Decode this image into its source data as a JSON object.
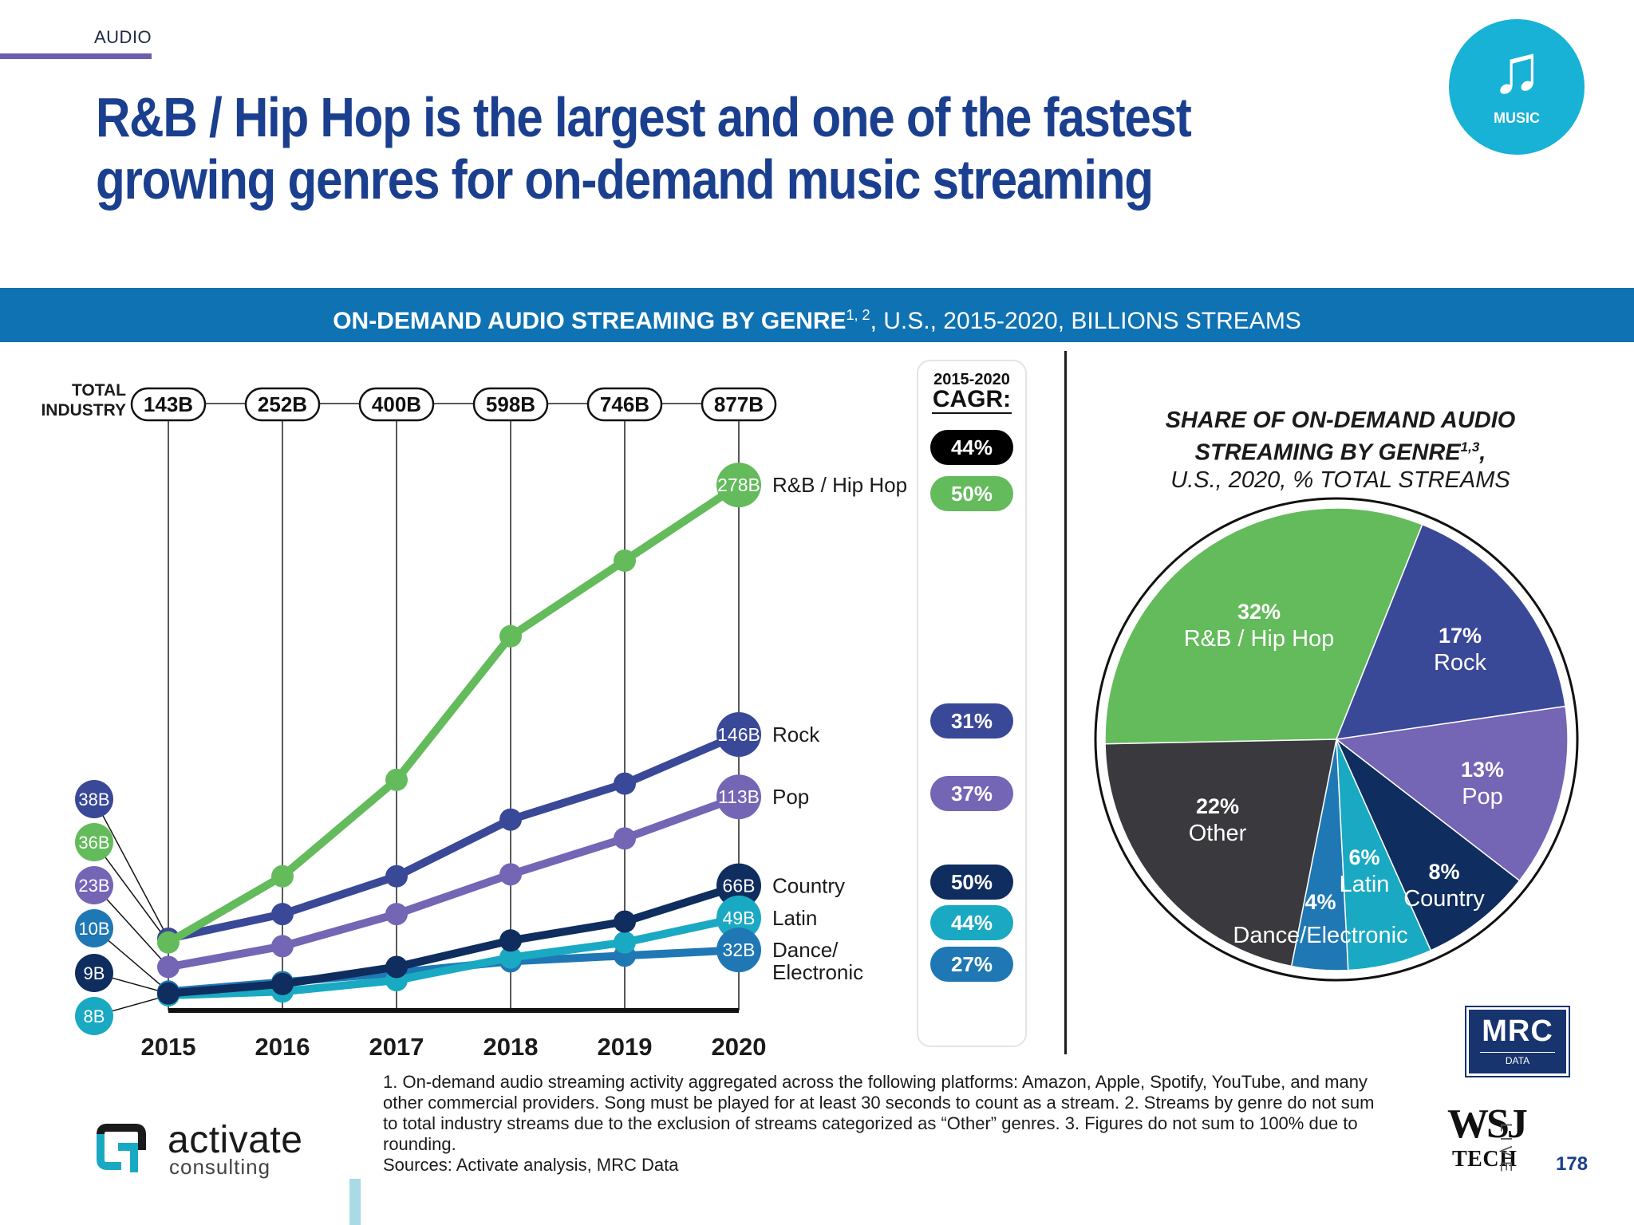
{
  "header": {
    "section": "AUDIO",
    "headline": "R&B / Hip Hop is the largest and one of the fastest growing genres for on-demand music streaming",
    "badge_label": "MUSIC"
  },
  "banner": {
    "bold_text": "ON-DEMAND AUDIO STREAMING BY GENRE",
    "superscript": "1, 2",
    "rest_text": ", U.S., 2015-2020, BILLIONS STREAMS"
  },
  "colors": {
    "rnb": "#63bb5b",
    "rock": "#3a4898",
    "pop": "#7465b5",
    "country": "#0f2d5e",
    "latin": "#1aa9c2",
    "dance": "#1f78b4",
    "other": "#3a3a3e",
    "navy": "#1b3f8f",
    "banner": "#0f72b3"
  },
  "chart_data": [
    {
      "type": "line",
      "x": [
        "2015",
        "2016",
        "2017",
        "2018",
        "2019",
        "2020"
      ],
      "total_label": "TOTAL INDUSTRY",
      "totals": [
        "143B",
        "252B",
        "400B",
        "598B",
        "746B",
        "877B"
      ],
      "cagr_title_top": "2015-2020",
      "cagr_title": "CAGR:",
      "total_cagr": "44%",
      "ylim": [
        0,
        285
      ],
      "series": [
        {
          "key": "rnb",
          "name": "R&B / Hip Hop",
          "values": [
            36,
            71,
            122,
            198,
            238,
            278
          ],
          "start_label": "36B",
          "end_label": "278B",
          "cagr": "50%"
        },
        {
          "key": "rock",
          "name": "Rock",
          "values": [
            38,
            51,
            71,
            101,
            120,
            146
          ],
          "start_label": "38B",
          "end_label": "146B",
          "cagr": "31%"
        },
        {
          "key": "pop",
          "name": "Pop",
          "values": [
            23,
            34,
            51,
            72,
            91,
            113
          ],
          "start_label": "23B",
          "end_label": "113B",
          "cagr": "37%"
        },
        {
          "key": "country",
          "name": "Country",
          "values": [
            9,
            14,
            23,
            37,
            47,
            66
          ],
          "start_label": "9B",
          "end_label": "66B",
          "cagr": "50%"
        },
        {
          "key": "latin",
          "name": "Latin",
          "values": [
            8,
            10,
            16,
            28,
            36,
            49
          ],
          "start_label": "8B",
          "end_label": "49B",
          "cagr": "44%"
        },
        {
          "key": "dance",
          "name": "Dance/ Electronic",
          "name_lines": [
            "Dance/",
            "Electronic"
          ],
          "values": [
            10,
            15,
            20,
            26,
            29,
            32
          ],
          "start_label": "10B",
          "end_label": "32B",
          "cagr": "27%"
        }
      ]
    },
    {
      "type": "pie",
      "title_line1": "SHARE OF ON-DEMAND AUDIO",
      "title_line2": "STREAMING BY GENRE",
      "title_sup": "1,3",
      "title_line2_end": ",",
      "title_line3": "U.S., 2020, % TOTAL STREAMS",
      "slices": [
        {
          "key": "rnb",
          "label": "R&B / Hip Hop",
          "pct_label": "32%",
          "value": 32
        },
        {
          "key": "rock",
          "label": "Rock",
          "pct_label": "17%",
          "value": 17
        },
        {
          "key": "pop",
          "label": "Pop",
          "pct_label": "13%",
          "value": 13
        },
        {
          "key": "country",
          "label": "Country",
          "pct_label": "8%",
          "value": 8
        },
        {
          "key": "latin",
          "label": "Latin",
          "pct_label": "6%",
          "value": 6
        },
        {
          "key": "dance",
          "label": "Dance/Electronic",
          "pct_label": "4%",
          "value": 4
        },
        {
          "key": "other",
          "label": "Other",
          "pct_label": "22%",
          "value": 22
        }
      ]
    }
  ],
  "footnote": {
    "lines": [
      "1. On-demand audio streaming activity aggregated across the following platforms: Amazon, Apple, Spotify, YouTube, and many",
      "other commercial providers. Song must be played for at least 30 seconds to count as a stream.  2. Streams by genre do not sum",
      "to total industry streams due to the exclusion of streams categorized as “Other” genres.  3. Figures do not sum to 100% due to",
      "rounding.",
      "Sources: Activate analysis, MRC Data"
    ]
  },
  "branding": {
    "mrc": "MRC",
    "mrc_sub": "DATA",
    "activate": "activate",
    "consulting": "consulting",
    "wsj": "WSJ",
    "tech": "TECH",
    "live": "LIVE",
    "page_number": "178"
  }
}
